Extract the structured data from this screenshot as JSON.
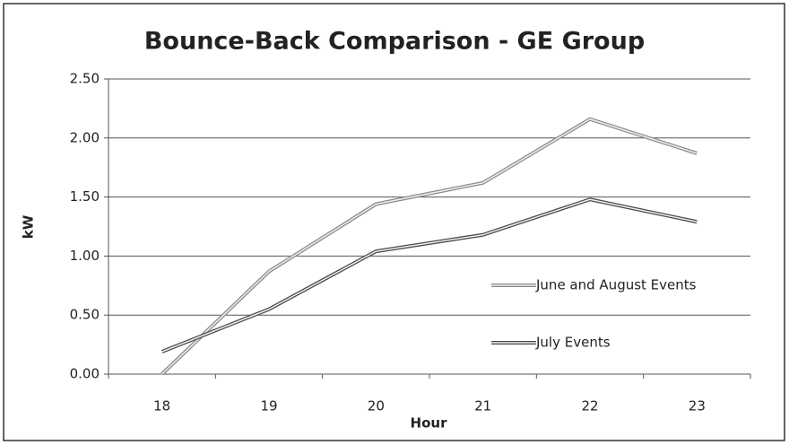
{
  "chart_data": {
    "type": "line",
    "title": "Bounce-Back Comparison - GE Group",
    "x_label": "Hour",
    "y_label": "kW",
    "categories": [
      "18",
      "19",
      "20",
      "21",
      "22",
      "23"
    ],
    "series": [
      {
        "name": "June and August Events",
        "color": "#8a8a8a",
        "values": [
          0.0,
          0.87,
          1.44,
          1.62,
          2.16,
          1.87
        ]
      },
      {
        "name": "July Events",
        "color": "#4a4a4a",
        "values": [
          0.19,
          0.55,
          1.04,
          1.18,
          1.48,
          1.29
        ]
      }
    ],
    "ylim": [
      0,
      2.5
    ],
    "yticks": [
      {
        "value": 0,
        "label": "0.00"
      },
      {
        "value": 0.5,
        "label": "0.50"
      },
      {
        "value": 1,
        "label": "1.00"
      },
      {
        "value": 1.5,
        "label": "1.50"
      },
      {
        "value": 2,
        "label": "2.00"
      },
      {
        "value": 2.5,
        "label": "2.50"
      }
    ],
    "grid": true
  }
}
